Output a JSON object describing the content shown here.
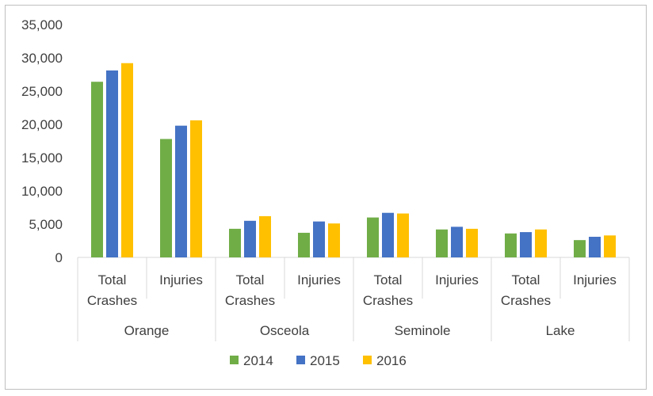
{
  "chart_data": {
    "type": "bar",
    "title": "",
    "xlabel": "",
    "ylabel": "",
    "ylim": [
      0,
      35000
    ],
    "yticks": [
      "0",
      "5,000",
      "10,000",
      "15,000",
      "20,000",
      "25,000",
      "30,000",
      "35,000"
    ],
    "grid": false,
    "legend_position": "bottom",
    "groups": [
      {
        "label": "Orange",
        "categories": [
          [
            "Total",
            "Crashes"
          ],
          [
            "Injuries"
          ]
        ]
      },
      {
        "label": "Osceola",
        "categories": [
          [
            "Total",
            "Crashes"
          ],
          [
            "Injuries"
          ]
        ]
      },
      {
        "label": "Seminole",
        "categories": [
          [
            "Total",
            "Crashes"
          ],
          [
            "Injuries"
          ]
        ]
      },
      {
        "label": "Lake",
        "categories": [
          [
            "Total",
            "Crashes"
          ],
          [
            "Injuries"
          ]
        ]
      }
    ],
    "categories": [
      "Orange - Total Crashes",
      "Orange - Injuries",
      "Osceola - Total Crashes",
      "Osceola - Injuries",
      "Seminole - Total Crashes",
      "Seminole - Injuries",
      "Lake - Total Crashes",
      "Lake - Injuries"
    ],
    "series": [
      {
        "name": "2014",
        "color": "#70ad47",
        "values": [
          26400,
          17800,
          4300,
          3700,
          6000,
          4200,
          3600,
          2600
        ]
      },
      {
        "name": "2015",
        "color": "#4472c4",
        "values": [
          28100,
          19800,
          5500,
          5400,
          6700,
          4600,
          3800,
          3100
        ]
      },
      {
        "name": "2016",
        "color": "#ffc000",
        "values": [
          29200,
          20600,
          6200,
          5100,
          6600,
          4300,
          4200,
          3300
        ]
      }
    ]
  }
}
